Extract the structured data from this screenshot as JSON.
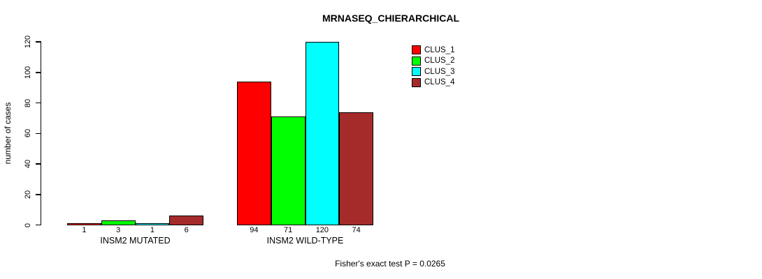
{
  "chart_data": {
    "type": "bar",
    "title": "MRNASEQ_CHIERARCHICAL",
    "ylabel": "number of cases",
    "xlabel": "",
    "ylim": [
      0,
      120
    ],
    "yticks": [
      0,
      20,
      40,
      60,
      80,
      100,
      120
    ],
    "categories": [
      "INSM2 MUTATED",
      "INSM2 WILD-TYPE"
    ],
    "series": [
      {
        "name": "CLUS_1",
        "color": "#FF0000",
        "values": [
          1,
          94
        ]
      },
      {
        "name": "CLUS_2",
        "color": "#00FF00",
        "values": [
          3,
          71
        ]
      },
      {
        "name": "CLUS_3",
        "color": "#00FFFF",
        "values": [
          1,
          120
        ]
      },
      {
        "name": "CLUS_4",
        "color": "#A52A2A",
        "values": [
          6,
          74
        ]
      }
    ],
    "bar_value_labels": [
      [
        "1",
        "3",
        "1",
        "6"
      ],
      [
        "94",
        "71",
        "120",
        "74"
      ]
    ],
    "annotation": "Fisher's exact test P = 0.0265",
    "legend_position": "top-right",
    "grid": false
  }
}
